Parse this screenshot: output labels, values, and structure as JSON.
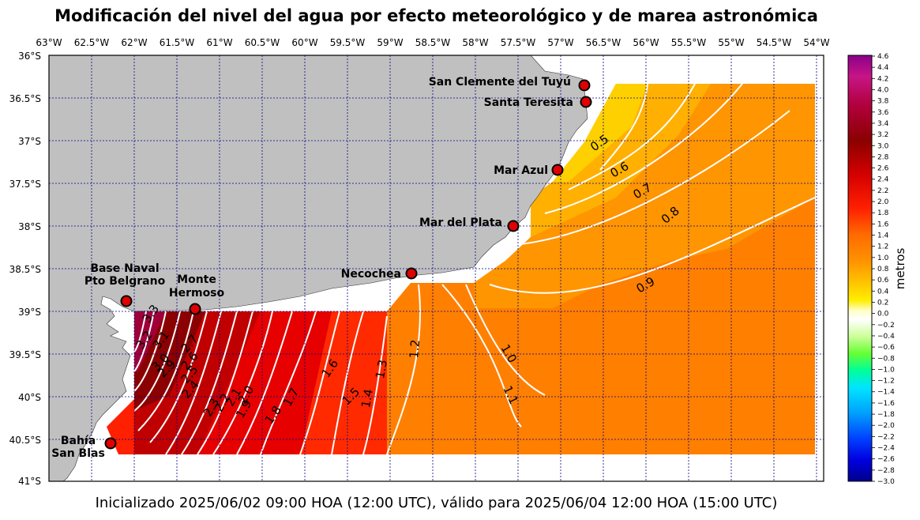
{
  "title": "Modificación del nivel del agua por efecto meteorológico y de marea astronómica",
  "footer": "Inicializado 2025/06/02 09:00 HOA (12:00 UTC), válido para 2025/06/04 12:00 HOA (15:00 UTC)",
  "colorbar": {
    "label": "metros",
    "ticks": [
      "4.6",
      "4.4",
      "4.2",
      "4.0",
      "3.8",
      "3.6",
      "3.4",
      "3.2",
      "3.0",
      "2.8",
      "2.6",
      "2.4",
      "2.2",
      "2.0",
      "1.8",
      "1.6",
      "1.4",
      "1.2",
      "1.0",
      "0.8",
      "0.6",
      "0.4",
      "0.2",
      "0.0",
      "−0.2",
      "−0.4",
      "−0.6",
      "−0.8",
      "−1.0",
      "−1.2",
      "−1.4",
      "−1.6",
      "−1.8",
      "−2.0",
      "−2.2",
      "−2.4",
      "−2.6",
      "−2.8",
      "−3.0"
    ],
    "colors": {
      "stops_top_to_bottom": [
        "#8b008b",
        "#c71585",
        "#b0003a",
        "#8b0000",
        "#c00000",
        "#ff0000",
        "#ff4500",
        "#ff7f00",
        "#ff9a00",
        "#ffc000",
        "#ffee00",
        "#ffffaa",
        "#ffffff",
        "#e8ffd0",
        "#a0ff40",
        "#00ff7f",
        "#00e0ff",
        "#00a0ff",
        "#0050ff",
        "#0000ff",
        "#00008b"
      ]
    }
  },
  "top_axis_labels": [
    "63°W",
    "62.5°W",
    "62°W",
    "61.5°W",
    "61°W",
    "60.5°W",
    "60°W",
    "59.5°W",
    "59°W",
    "58.5°W",
    "58°W",
    "57.5°W",
    "57°W",
    "56.5°W",
    "56°W",
    "55.5°W",
    "55°W",
    "54.5°W",
    "54°W"
  ],
  "left_axis_labels": [
    "36°S",
    "36.5°S",
    "37°S",
    "37.5°S",
    "38°S",
    "38.5°S",
    "39°S",
    "39.5°S",
    "40°S",
    "40.5°S",
    "41°S"
  ],
  "cities": [
    {
      "name": "San Clemente del Tuyú"
    },
    {
      "name": "Santa Teresita"
    },
    {
      "name": "Mar Azul"
    },
    {
      "name": "Mar del Plata"
    },
    {
      "name": "Necochea"
    },
    {
      "name": "Base Naval",
      "name2": "Pto Belgrano"
    },
    {
      "name": "Monte",
      "name2": "Hermoso"
    },
    {
      "name": "Bahía",
      "name2": "San Blas"
    }
  ],
  "contour_labels": [
    "0.5",
    "0.6",
    "0.7",
    "0.8",
    "0.9",
    "1.0",
    "1.1",
    "1.2",
    "1.3",
    "1.4",
    "1.5",
    "1.6",
    "1.7",
    "1.8",
    "1.9",
    "2.0",
    "2.1",
    "2.2",
    "2.3",
    "2.4",
    "2.5",
    "2.6",
    "2.7",
    "2.8",
    "2.9",
    "3.0",
    "3.1",
    "3.2",
    "3.3"
  ],
  "land_color": "#c0c0c0",
  "grid_color": "#00008b"
}
